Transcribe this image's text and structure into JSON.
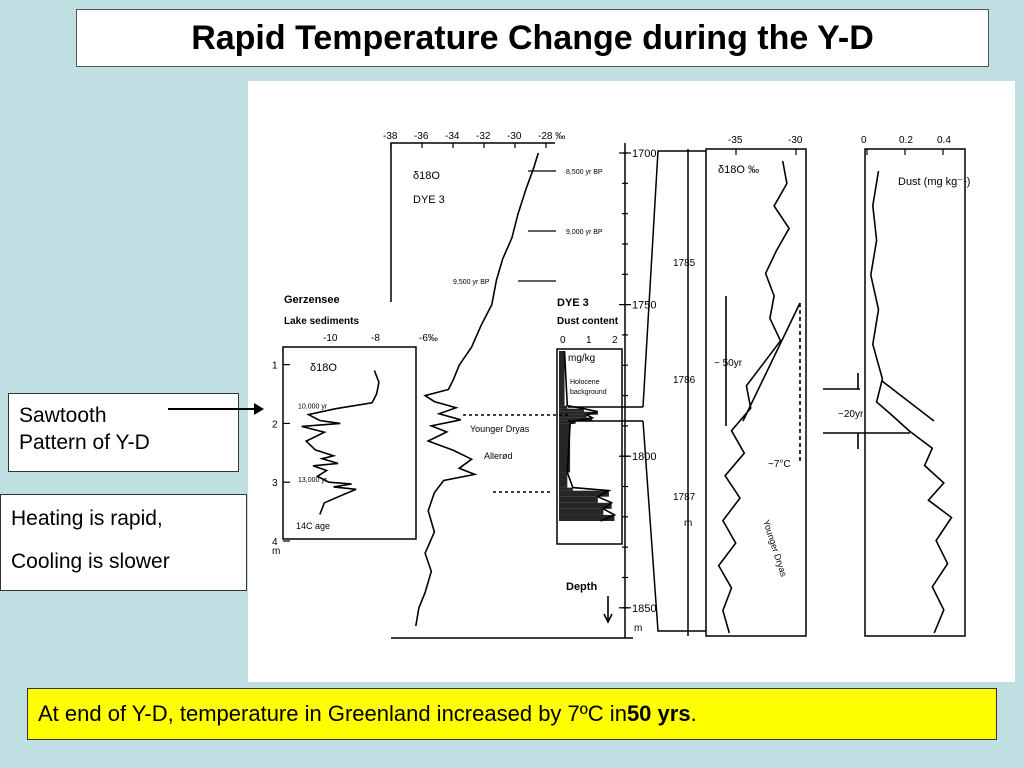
{
  "title": "Rapid Temperature Change during the Y-D",
  "callouts": {
    "sawtooth": [
      "Sawtooth",
      "Pattern of Y-D"
    ],
    "heating": "Heating is rapid,",
    "cooling": "Cooling is slower"
  },
  "bottom": {
    "prefix": "At end of Y-D, temperature in Greenland increased by 7ºC in ",
    "bold": "50 yrs",
    "suffix": "."
  },
  "chart_data": [
    {
      "type": "line",
      "panel": "gerzensee",
      "title": "Gerzensee",
      "subtitle": "Lake sediments",
      "series_label": "δ18O",
      "x_ticks": [
        "-10",
        "-8",
        "-6‰"
      ],
      "y_ticks": [
        "1",
        "2",
        "3",
        "4"
      ],
      "y_unit": "m",
      "xlim": [
        -11,
        -5.5
      ],
      "ylim": [
        0.7,
        4.0
      ],
      "age_labels": [
        {
          "text": "10,000 yr",
          "depth": 1.75
        },
        {
          "text": "13,000 yr",
          "depth": 3.0
        }
      ],
      "axis_note": "14C age",
      "series": [
        {
          "name": "δ18O",
          "points": [
            [
              -7.2,
              1.1
            ],
            [
              -7.0,
              1.3
            ],
            [
              -7.1,
              1.5
            ],
            [
              -7.3,
              1.65
            ],
            [
              -8.9,
              1.75
            ],
            [
              -10.1,
              1.85
            ],
            [
              -9.6,
              1.95
            ],
            [
              -8.7,
              2.0
            ],
            [
              -10.4,
              2.05
            ],
            [
              -9.4,
              2.15
            ],
            [
              -10.2,
              2.3
            ],
            [
              -9.8,
              2.45
            ],
            [
              -9.0,
              2.55
            ],
            [
              -9.5,
              2.6
            ],
            [
              -8.8,
              2.68
            ],
            [
              -9.9,
              2.72
            ],
            [
              -9.3,
              2.8
            ],
            [
              -9.7,
              2.9
            ],
            [
              -9.2,
              3.0
            ],
            [
              -8.2,
              3.03
            ],
            [
              -9.0,
              3.08
            ],
            [
              -8.0,
              3.12
            ],
            [
              -8.5,
              3.2
            ],
            [
              -9.4,
              3.35
            ],
            [
              -9.6,
              3.55
            ]
          ]
        }
      ]
    },
    {
      "type": "line",
      "panel": "dye3-d18o",
      "series_label": "δ18O",
      "site": "DYE 3",
      "x_ticks": [
        "-38",
        "-36",
        "-34",
        "-32",
        "-30",
        "-28 ‰"
      ],
      "xlim": [
        -38,
        -28
      ],
      "age_labels": [
        "8,500 yr BP",
        "9,000 yr BP",
        "9,500 yr BP"
      ],
      "zone_labels": [
        "Younger Dryas",
        "Allerød"
      ],
      "series": [
        {
          "name": "δ18O",
          "points": [
            [
              -28.5,
              1700
            ],
            [
              -28.8,
              1705
            ],
            [
              -29.3,
              1712
            ],
            [
              -29.8,
              1720
            ],
            [
              -30.2,
              1728
            ],
            [
              -30.8,
              1735
            ],
            [
              -31.2,
              1742
            ],
            [
              -31.5,
              1750
            ],
            [
              -32.2,
              1757
            ],
            [
              -32.8,
              1764
            ],
            [
              -33.6,
              1770
            ],
            [
              -34.0,
              1775
            ],
            [
              -34.3,
              1778
            ],
            [
              -35.8,
              1780
            ],
            [
              -35.2,
              1782
            ],
            [
              -33.8,
              1784
            ],
            [
              -34.9,
              1786
            ],
            [
              -33.5,
              1788
            ],
            [
              -35.4,
              1790
            ],
            [
              -34.4,
              1792
            ],
            [
              -35.6,
              1795
            ],
            [
              -34.0,
              1798
            ],
            [
              -32.8,
              1801
            ],
            [
              -33.6,
              1804
            ],
            [
              -32.6,
              1806
            ],
            [
              -34.6,
              1808
            ],
            [
              -35.2,
              1812
            ],
            [
              -35.6,
              1818
            ],
            [
              -35.2,
              1825
            ],
            [
              -35.8,
              1832
            ],
            [
              -35.4,
              1838
            ],
            [
              -35.8,
              1845
            ],
            [
              -36.2,
              1850
            ],
            [
              -36.4,
              1856
            ]
          ]
        }
      ]
    },
    {
      "type": "area",
      "panel": "dye3-dust",
      "title": "DYE 3",
      "subtitle": "Dust content",
      "x_ticks": [
        "0",
        "1",
        "2"
      ],
      "unit": "mg/kg",
      "xlim": [
        0,
        2.2
      ],
      "annotations": [
        "Holocene",
        "background"
      ],
      "series": [
        {
          "name": "Dust content",
          "points": [
            [
              0.2,
              1760
            ],
            [
              0.3,
              1778
            ],
            [
              0.9,
              1779
            ],
            [
              1.4,
              1780
            ],
            [
              1.0,
              1781
            ],
            [
              1.2,
              1782
            ],
            [
              0.6,
              1783
            ],
            [
              0.4,
              1784
            ],
            [
              0.3,
              1800
            ],
            [
              0.5,
              1805
            ],
            [
              1.8,
              1806
            ],
            [
              1.4,
              1808
            ],
            [
              1.9,
              1810
            ],
            [
              1.6,
              1812
            ],
            [
              2.0,
              1814
            ],
            [
              1.5,
              1816
            ]
          ]
        }
      ]
    },
    {
      "type": "line",
      "panel": "depth-axis",
      "y_ticks": [
        "1700",
        "1750",
        "1800",
        "1850"
      ],
      "y_unit": "m",
      "axis_label": "Depth"
    },
    {
      "type": "line",
      "panel": "zoom-d18o",
      "series_label": "δ18O ‰",
      "x_ticks": [
        "-35",
        "-30"
      ],
      "xlim": [
        -37,
        -28
      ],
      "y_ticks": [
        "1785",
        "1786",
        "1787"
      ],
      "y_unit": "m",
      "annotations": [
        "~ 50yr",
        "~7°C",
        "Younger Dryas"
      ],
      "series": [
        {
          "name": "δ18O",
          "points": [
            [
              -30.0,
              1784.0
            ],
            [
              -29.6,
              1784.2
            ],
            [
              -30.8,
              1784.4
            ],
            [
              -29.4,
              1784.6
            ],
            [
              -30.6,
              1784.8
            ],
            [
              -31.6,
              1785.0
            ],
            [
              -30.8,
              1785.2
            ],
            [
              -31.2,
              1785.4
            ],
            [
              -30.2,
              1785.6
            ],
            [
              -31.8,
              1785.8
            ],
            [
              -33.4,
              1786.0
            ],
            [
              -33.0,
              1786.2
            ],
            [
              -34.8,
              1786.4
            ],
            [
              -33.6,
              1786.6
            ],
            [
              -35.4,
              1786.8
            ],
            [
              -34.0,
              1787.0
            ],
            [
              -35.6,
              1787.2
            ],
            [
              -34.4,
              1787.4
            ],
            [
              -36.0,
              1787.6
            ],
            [
              -34.8,
              1787.8
            ],
            [
              -35.6,
              1788.0
            ],
            [
              -35.0,
              1788.2
            ]
          ]
        }
      ]
    },
    {
      "type": "line",
      "panel": "zoom-dust",
      "series_label": "Dust (mg kg⁻¹)",
      "x_ticks": [
        "0",
        "0.2",
        "0.4"
      ],
      "xlim": [
        0,
        0.5
      ],
      "annotations": [
        "~20yr"
      ],
      "series": [
        {
          "name": "Dust",
          "points": [
            [
              0.06,
              1784.0
            ],
            [
              0.03,
              1784.3
            ],
            [
              0.05,
              1784.6
            ],
            [
              0.02,
              1784.9
            ],
            [
              0.06,
              1785.2
            ],
            [
              0.03,
              1785.5
            ],
            [
              0.08,
              1785.8
            ],
            [
              0.05,
              1786.0
            ],
            [
              0.12,
              1786.1
            ],
            [
              0.22,
              1786.25
            ],
            [
              0.34,
              1786.4
            ],
            [
              0.3,
              1786.55
            ],
            [
              0.4,
              1786.7
            ],
            [
              0.32,
              1786.85
            ],
            [
              0.44,
              1787.0
            ],
            [
              0.36,
              1787.2
            ],
            [
              0.42,
              1787.4
            ],
            [
              0.34,
              1787.6
            ],
            [
              0.4,
              1787.8
            ],
            [
              0.35,
              1788.0
            ]
          ]
        }
      ]
    }
  ]
}
